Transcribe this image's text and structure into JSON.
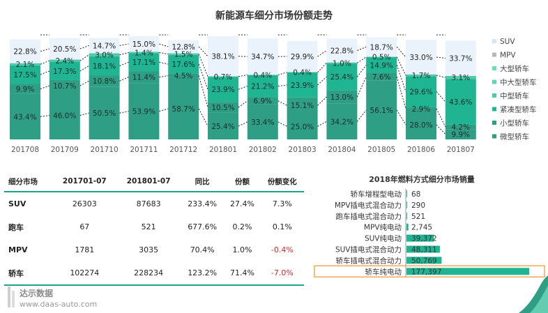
{
  "title": "新能源车细分市场份额走势",
  "chart_data": [
    {
      "type": "bar",
      "stacked": true,
      "percent": true,
      "title": "新能源车细分市场份额走势",
      "categories": [
        "201708",
        "201709",
        "201710",
        "201711",
        "201712",
        "201801",
        "201802",
        "201803",
        "201804",
        "201805",
        "201806",
        "201807"
      ],
      "series": [
        {
          "name": "微型轿车",
          "color": "#2e9f84",
          "values": [
            43.4,
            46.0,
            50.5,
            53.9,
            58.7,
            25.4,
            33.4,
            25.0,
            34.2,
            56.1,
            28.0,
            9.9
          ]
        },
        {
          "name": "小型轿车",
          "color": "#2e9f84",
          "values": [
            9.9,
            10.7,
            10.8,
            11.4,
            4.5,
            10.5,
            6.9,
            15.1,
            13.0,
            7.6,
            2.9,
            4.2
          ]
        },
        {
          "name": "紧凑型轿车",
          "color": "#1fb592",
          "values": [
            17.5,
            17.3,
            18.1,
            17.1,
            17.6,
            23.9,
            21.2,
            23.9,
            25.4,
            14.9,
            29.6,
            43.6
          ]
        },
        {
          "name": "中型轿车",
          "color": "#4fcaa9",
          "values": [
            2.1,
            2.4,
            3.0,
            1.4,
            1.5,
            0.7,
            0.4,
            0.4,
            1.0,
            0.5,
            1.7,
            3.1
          ]
        },
        {
          "name": "中大型轿车",
          "color": "#5fd3b6",
          "values": [
            0,
            0,
            0,
            0,
            0,
            0,
            0,
            0,
            0,
            0,
            0,
            0
          ]
        },
        {
          "name": "大型轿车",
          "color": "#6fd9c0",
          "values": [
            0,
            0,
            0,
            0,
            0,
            0,
            0,
            0,
            0,
            0,
            0,
            0
          ]
        },
        {
          "name": "MPV",
          "color": "#b7b7b7",
          "values": [
            0,
            0,
            0,
            0,
            0,
            0,
            0,
            0,
            0,
            0,
            0,
            0
          ]
        },
        {
          "name": "SUV",
          "color": "#eaf3fb",
          "values": [
            22.8,
            20.5,
            14.7,
            15.0,
            12.8,
            38.1,
            34.7,
            29.9,
            22.8,
            18.7,
            33.0,
            33.7
          ]
        }
      ],
      "legend_order": [
        "SUV",
        "MPV",
        "大型轿车",
        "中大型轿车",
        "中型轿车",
        "紧凑型轿车",
        "小型轿车",
        "微型轿车"
      ],
      "legend_position": "right",
      "ylim": [
        0,
        100
      ]
    },
    {
      "type": "bar",
      "orientation": "horizontal",
      "title": "2018年燃料方式细分市场销量",
      "categories": [
        "轿车增程型电动",
        "MPV插电式混合动力",
        "跑车插电式混合动力",
        "MPV纯电动",
        "SUV纯电动",
        "SUV插电式混合动力",
        "轿车插电式混合动力",
        "轿车纯电动"
      ],
      "values": [
        68,
        290,
        521,
        2745,
        39372,
        48311,
        50769,
        177397
      ],
      "value_labels": [
        "68",
        "290",
        "521",
        "2,745",
        "39,372",
        "48,311",
        "50,769",
        "177,397"
      ],
      "highlight": "轿车纯电动",
      "highlight_color": "#f0a95a",
      "bar_color": "#1fb592"
    },
    {
      "type": "table",
      "columns": [
        "细分市场",
        "201701-07",
        "201801-07",
        "同比",
        "份额",
        "份额变化"
      ],
      "rows": [
        [
          "SUV",
          "26303",
          "87683",
          "233.4%",
          "27.4%",
          "7.3%"
        ],
        [
          "跑车",
          "67",
          "521",
          "677.6%",
          "0.2%",
          "0.1%"
        ],
        [
          "MPV",
          "1781",
          "3035",
          "70.4%",
          "1.0%",
          "-0.4%"
        ],
        [
          "轿车",
          "102274",
          "228234",
          "123.2%",
          "71.4%",
          "-7.0%"
        ]
      ],
      "negative_color": "#d62728"
    }
  ],
  "logo": {
    "name": "达示数据",
    "url": "www.daas-auto.com"
  }
}
